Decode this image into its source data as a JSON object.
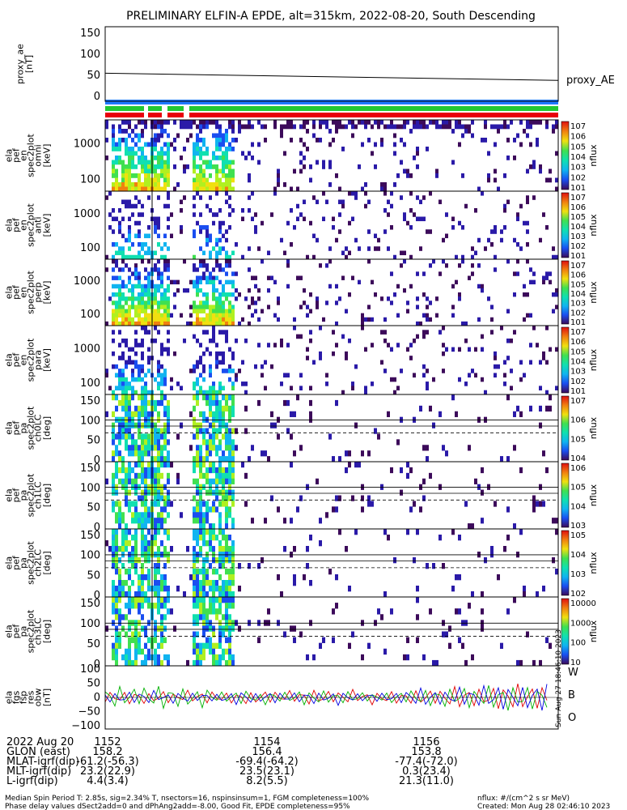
{
  "title": "PRELIMINARY ELFIN-A EPDE, alt=315km, 2022-08-20, South Descending",
  "chart_data": {
    "type": "heatmap",
    "x_ticks": [
      "1152",
      "1154",
      "1156"
    ],
    "panels": [
      {
        "label": [
          "proxy_ae",
          "[nT]"
        ],
        "kind": "line",
        "y_ticks": [
          "150",
          "100",
          "50",
          "0"
        ],
        "ylim": [
          0,
          150
        ],
        "legend": "proxy_AE",
        "line": {
          "start": 55,
          "end": 38
        }
      },
      {
        "label": [
          "ela",
          "pef",
          "en",
          "spec2plot",
          "omni",
          "[keV]"
        ],
        "kind": "spec",
        "y_ticks": [
          "1000",
          "100"
        ],
        "cb_label": "nflux",
        "cb_ticks": [
          "10^7",
          "10^6",
          "10^5",
          "10^4",
          "10^3",
          "10^2",
          "10^1"
        ]
      },
      {
        "label": [
          "ela",
          "pef",
          "en",
          "spec2plot",
          "anti",
          "[keV]"
        ],
        "kind": "spec",
        "y_ticks": [
          "1000",
          "100"
        ],
        "cb_label": "nflux",
        "cb_ticks": [
          "10^7",
          "10^6",
          "10^5",
          "10^4",
          "10^3",
          "10^2",
          "10^1"
        ]
      },
      {
        "label": [
          "ela",
          "pef",
          "en",
          "spec2plot",
          "perp",
          "[keV]"
        ],
        "kind": "spec",
        "y_ticks": [
          "1000",
          "100"
        ],
        "cb_label": "nflux",
        "cb_ticks": [
          "10^7",
          "10^6",
          "10^5",
          "10^4",
          "10^3",
          "10^2",
          "10^1"
        ]
      },
      {
        "label": [
          "ela",
          "pef",
          "en",
          "spec2plot",
          "para",
          "[keV]"
        ],
        "kind": "spec",
        "y_ticks": [
          "1000",
          "100"
        ],
        "cb_label": "nflux",
        "cb_ticks": [
          "10^7",
          "10^6",
          "10^5",
          "10^4",
          "10^3",
          "10^2",
          "10^1"
        ]
      },
      {
        "label": [
          "ela",
          "pef",
          "pa",
          "spec2plot",
          "ch0LC",
          "[deg]"
        ],
        "kind": "pa",
        "y_ticks": [
          "150",
          "100",
          "50",
          "0"
        ],
        "cb_label": "nflux",
        "cb_ticks": [
          "10^7",
          "10^6",
          "10^5",
          "10^4"
        ]
      },
      {
        "label": [
          "ela",
          "pef",
          "pa",
          "spec2plot",
          "ch1LC",
          "[deg]"
        ],
        "kind": "pa",
        "y_ticks": [
          "150",
          "100",
          "50",
          "0"
        ],
        "cb_label": "nflux",
        "cb_ticks": [
          "10^6",
          "10^5",
          "10^4",
          "10^3"
        ]
      },
      {
        "label": [
          "ela",
          "pef",
          "pa",
          "spec2plot",
          "ch2LC",
          "[deg]"
        ],
        "kind": "pa",
        "y_ticks": [
          "150",
          "100",
          "50",
          "0"
        ],
        "cb_label": "nflux",
        "cb_ticks": [
          "10^5",
          "10^4",
          "10^3",
          "10^2"
        ]
      },
      {
        "label": [
          "ela",
          "pef",
          "pa",
          "spec2plot",
          "ch3LC",
          "[deg]"
        ],
        "kind": "pa",
        "y_ticks": [
          "150",
          "100",
          "50",
          "0"
        ],
        "cb_label": "nflux",
        "cb_ticks": [
          "10000",
          "1000",
          "100",
          "10"
        ]
      },
      {
        "label": [
          "ela",
          "fgs",
          "fsp",
          "res",
          "obw",
          "[nT]"
        ],
        "kind": "mag",
        "y_ticks": [
          "100",
          "50",
          "0",
          "−50",
          "−100"
        ],
        "ylim": [
          -100,
          100
        ],
        "legend": [
          "W",
          "B",
          "O"
        ],
        "legend_colors": [
          "#e00000",
          "#00b000",
          "#0000e0"
        ]
      }
    ]
  },
  "colors": {
    "state_blue": "#1e78ff",
    "state_green": "#22c833",
    "state_red": "#e8000b",
    "line": "#000000"
  },
  "ephemeris": {
    "rows": [
      {
        "label": "2022 Aug 20",
        "values": [
          "1152",
          "1154",
          "1156"
        ]
      },
      {
        "label": "GLON (east)",
        "values": [
          "158.2",
          "156.4",
          "153.8"
        ]
      },
      {
        "label": "MLAT-igrf(dip)",
        "values": [
          "-61.2(-56.3)",
          "-69.4(-64.2)",
          "-77.4(-72.0)"
        ]
      },
      {
        "label": "MLT-igrf(dip)",
        "values": [
          "23.2(22.9)",
          "23.5(23.1)",
          "0.3(23.4)"
        ]
      },
      {
        "label": "L-igrf(dip)",
        "values": [
          "4.4(3.4)",
          "8.2(5.5)",
          "21.3(11.0)"
        ]
      }
    ]
  },
  "footer": {
    "line1": "Median Spin Period T: 2.85s, sig=2.34% T, nsectors=16, nspinsinsum=1, FGM completeness=100%",
    "line2": "Phase delay values dSect2add=0 and dPhAng2add=-8.00, Good Fit, EPDE completeness=95%",
    "units": "nflux: #/(cm^2 s sr MeV)",
    "created": "Created: Mon Aug 28 02:46:10 2023",
    "side": "Sun Aug 27 18:46:10 2023"
  }
}
